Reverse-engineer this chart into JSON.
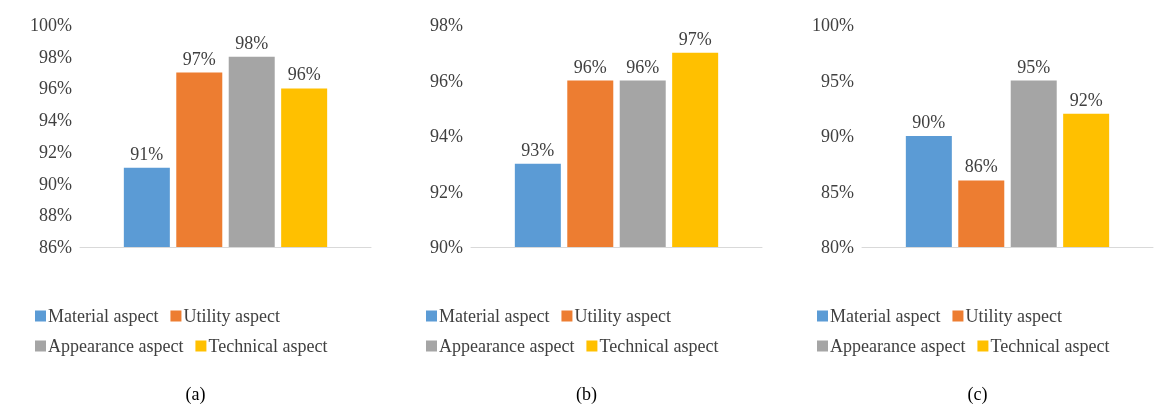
{
  "chart_data": [
    {
      "type": "bar",
      "categories": [
        null
      ],
      "ylim": [
        86,
        100
      ],
      "yticks": [
        {
          "value": 86,
          "label": "86%"
        },
        {
          "value": 88,
          "label": "88%"
        },
        {
          "value": 90,
          "label": "90%"
        },
        {
          "value": 92,
          "label": "92%"
        },
        {
          "value": 94,
          "label": "94%"
        },
        {
          "value": 96,
          "label": "96%"
        },
        {
          "value": 98,
          "label": "98%"
        },
        {
          "value": 100,
          "label": "100%"
        }
      ],
      "grid": false,
      "legend": "bottom",
      "annotations": [
        "(a)"
      ],
      "series": [
        {
          "name": "Material aspect",
          "color": "#5b9bd5",
          "values": [
            91
          ],
          "value_labels": [
            "91%"
          ]
        },
        {
          "name": "Utility aspect",
          "color": "#ed7d31",
          "values": [
            97
          ],
          "value_labels": [
            "97%"
          ]
        },
        {
          "name": "Appearance aspect",
          "color": "#a5a5a5",
          "values": [
            98
          ],
          "value_labels": [
            "98%"
          ]
        },
        {
          "name": "Technical aspect",
          "color": "#ffc000",
          "values": [
            96
          ],
          "value_labels": [
            "96%"
          ]
        }
      ]
    },
    {
      "type": "bar",
      "categories": [
        null
      ],
      "ylim": [
        90,
        98
      ],
      "yticks": [
        {
          "value": 90,
          "label": "90%"
        },
        {
          "value": 92,
          "label": "92%"
        },
        {
          "value": 94,
          "label": "94%"
        },
        {
          "value": 96,
          "label": "96%"
        },
        {
          "value": 98,
          "label": "98%"
        }
      ],
      "grid": false,
      "legend": "bottom",
      "annotations": [
        "(b)"
      ],
      "series": [
        {
          "name": "Material aspect",
          "color": "#5b9bd5",
          "values": [
            93
          ],
          "value_labels": [
            "93%"
          ]
        },
        {
          "name": "Utility aspect",
          "color": "#ed7d31",
          "values": [
            96
          ],
          "value_labels": [
            "96%"
          ]
        },
        {
          "name": "Appearance aspect",
          "color": "#a5a5a5",
          "values": [
            96
          ],
          "value_labels": [
            "96%"
          ]
        },
        {
          "name": "Technical aspect",
          "color": "#ffc000",
          "values": [
            97
          ],
          "value_labels": [
            "97%"
          ]
        }
      ]
    },
    {
      "type": "bar",
      "categories": [
        null
      ],
      "ylim": [
        80,
        100
      ],
      "yticks": [
        {
          "value": 80,
          "label": "80%"
        },
        {
          "value": 85,
          "label": "85%"
        },
        {
          "value": 90,
          "label": "90%"
        },
        {
          "value": 95,
          "label": "95%"
        },
        {
          "value": 100,
          "label": "100%"
        }
      ],
      "grid": false,
      "legend": "bottom",
      "annotations": [
        "(c)"
      ],
      "series": [
        {
          "name": "Material aspect",
          "color": "#5b9bd5",
          "values": [
            90
          ],
          "value_labels": [
            "90%"
          ]
        },
        {
          "name": "Utility aspect",
          "color": "#ed7d31",
          "values": [
            86
          ],
          "value_labels": [
            "86%"
          ]
        },
        {
          "name": "Appearance aspect",
          "color": "#a5a5a5",
          "values": [
            95
          ],
          "value_labels": [
            "95%"
          ]
        },
        {
          "name": "Technical aspect",
          "color": "#ffc000",
          "values": [
            92
          ],
          "value_labels": [
            "92%"
          ]
        }
      ]
    }
  ]
}
